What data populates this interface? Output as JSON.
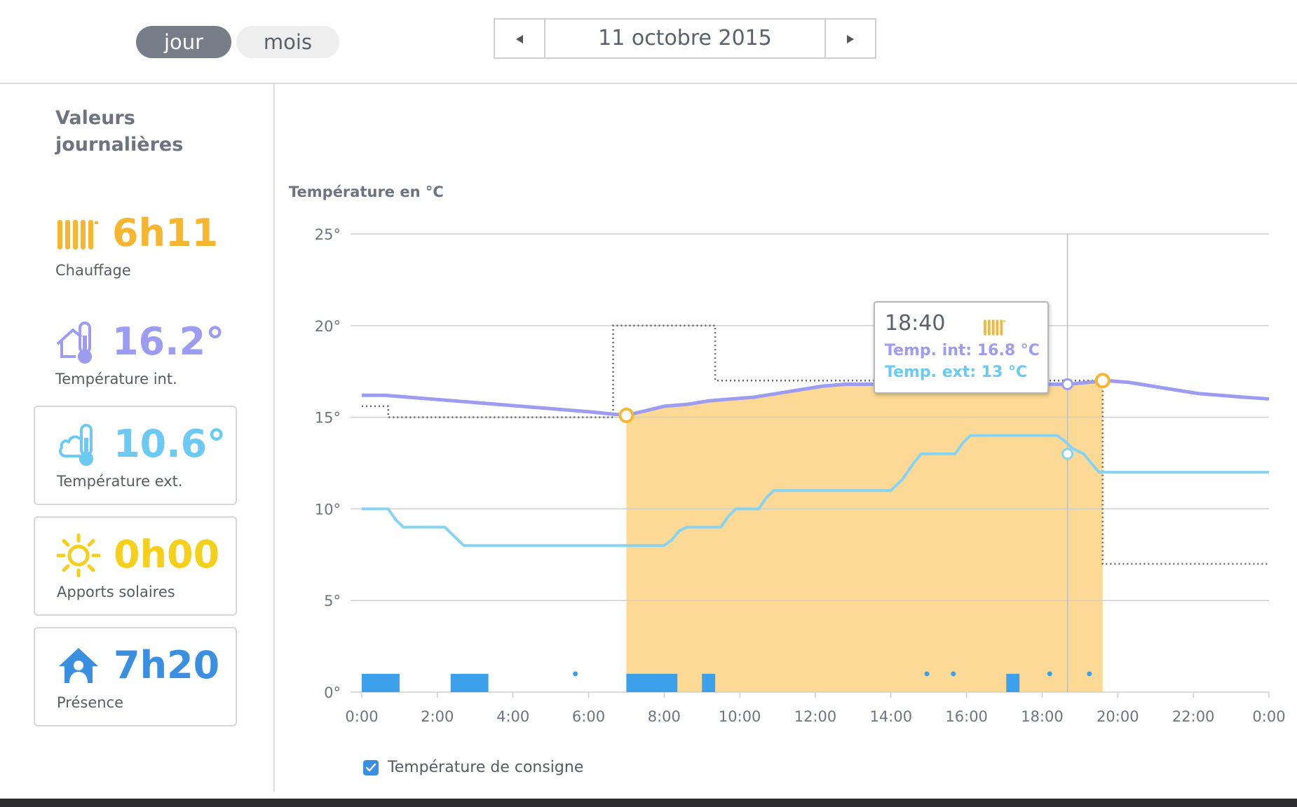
{
  "tabs": [
    {
      "label": "jour",
      "active": true
    },
    {
      "label": "mois",
      "active": false
    }
  ],
  "date_nav": {
    "date": "11 octobre 2015",
    "prev_icon": "triangle-left-icon",
    "next_icon": "triangle-right-icon"
  },
  "sidebar": {
    "title": "Valeurs journalières",
    "stats": [
      {
        "value": "6h11",
        "label": "Chauffage",
        "icon": "radiator-icon",
        "color": "#f7b631",
        "boxed": false
      },
      {
        "value": "16.2°",
        "label": "Température int.",
        "icon": "house-thermometer-icon",
        "color": "#9b9cf2",
        "boxed": false
      },
      {
        "value": "10.6°",
        "label": "Température ext.",
        "icon": "cloud-thermometer-icon",
        "color": "#6ccaf2",
        "boxed": true
      },
      {
        "value": "0h00",
        "label": "Apports solaires",
        "icon": "sun-icon",
        "color": "#f4cf1c",
        "boxed": true
      },
      {
        "value": "7h20",
        "label": "Présence",
        "icon": "presence-house-icon",
        "color": "#3b8fe0",
        "boxed": true
      }
    ]
  },
  "colors": {
    "interior": "#9b9cf2",
    "exterior": "#86d3f4",
    "heating_fill": "#fcd994",
    "heating_marker": "#f7b631",
    "setpoint": "#666666",
    "presence": "#3da0ea"
  },
  "chart_data": {
    "type": "line",
    "title": "Température en °C",
    "xlabel": "",
    "ylabel": "Température en °C",
    "x_unit": "hours",
    "xlim": [
      0,
      24
    ],
    "ylim": [
      0,
      25
    ],
    "grid": true,
    "x_ticks": [
      "0:00",
      "2:00",
      "4:00",
      "6:00",
      "8:00",
      "10:00",
      "12:00",
      "14:00",
      "16:00",
      "18:00",
      "20:00",
      "22:00",
      "0:00"
    ],
    "y_ticks": [
      "0°",
      "5°",
      "10°",
      "15°",
      "20°",
      "25°"
    ],
    "series": [
      {
        "name": "Temp. int",
        "key": "interior",
        "x": [
          0,
          0.6,
          1.2,
          1.8,
          2.4,
          3,
          3.6,
          4.2,
          4.8,
          5.4,
          6,
          6.5,
          7,
          7.4,
          8,
          8.6,
          9.2,
          9.8,
          10.4,
          11,
          11.6,
          12.2,
          12.8,
          13.4,
          14,
          14.6,
          15.2,
          15.8,
          16.4,
          17,
          17.6,
          18.2,
          18.7,
          19.2,
          19.7,
          20.3,
          20.9,
          21.5,
          22.1,
          22.7,
          23.3,
          24
        ],
        "y": [
          16.2,
          16.2,
          16.1,
          16.0,
          15.9,
          15.8,
          15.7,
          15.6,
          15.5,
          15.4,
          15.3,
          15.2,
          15.1,
          15.3,
          15.6,
          15.7,
          15.9,
          16.0,
          16.1,
          16.3,
          16.5,
          16.7,
          16.8,
          16.8,
          16.8,
          16.7,
          16.6,
          16.6,
          16.6,
          16.7,
          16.7,
          16.8,
          16.8,
          16.9,
          17.0,
          16.9,
          16.7,
          16.5,
          16.3,
          16.2,
          16.1,
          16.0
        ]
      },
      {
        "name": "Temp. ext",
        "key": "exterior",
        "x": [
          0,
          0.7,
          0.9,
          1.1,
          2.2,
          2.5,
          2.7,
          4.0,
          6.0,
          7.0,
          8.0,
          8.2,
          8.4,
          8.6,
          9.5,
          9.7,
          9.9,
          10.5,
          10.7,
          10.9,
          14.0,
          14.3,
          14.6,
          14.8,
          15.7,
          15.9,
          16.1,
          18.4,
          18.6,
          18.8,
          19.1,
          19.3,
          19.5,
          20.0,
          22.0,
          24.0
        ],
        "y": [
          10,
          10,
          9.4,
          9,
          9,
          8.4,
          8,
          8,
          8,
          8,
          8,
          8.3,
          8.8,
          9,
          9,
          9.6,
          10,
          10,
          10.6,
          11,
          11,
          11.6,
          12.5,
          13,
          13,
          13.6,
          14,
          14,
          13.7,
          13.3,
          13,
          12.5,
          12,
          12,
          12,
          12
        ]
      },
      {
        "name": "Température de consigne",
        "key": "setpoint",
        "style": "dotted",
        "x": [
          0,
          0.7,
          0.7,
          6.65,
          6.65,
          9.35,
          9.35,
          19.6,
          19.6,
          24
        ],
        "y": [
          15.6,
          15.6,
          15.0,
          15.0,
          20.0,
          20.0,
          17.0,
          17.0,
          7.0,
          7.0
        ]
      }
    ],
    "heating_periods": [
      [
        7.0,
        19.6
      ]
    ],
    "heating_markers": [
      [
        7.0,
        15.1
      ],
      [
        19.6,
        17.0
      ]
    ],
    "presence_blocks": [
      [
        0,
        1.0
      ],
      [
        2.35,
        3.35
      ],
      [
        7.0,
        8.35
      ],
      [
        9.0,
        9.35
      ],
      [
        17.05,
        17.4
      ]
    ],
    "presence_dots": [
      5.65,
      14.95,
      15.65,
      18.2,
      19.25
    ],
    "tooltip": {
      "time": "18:40",
      "x": 18.67,
      "lines": [
        {
          "label": "Temp. int: 16.8 °C",
          "key": "interior",
          "y": 16.8
        },
        {
          "label": "Temp. ext: 13 °C",
          "key": "exterior",
          "y": 13.0
        }
      ]
    },
    "legend": [
      {
        "label": "Température de consigne",
        "checked": true
      }
    ]
  }
}
